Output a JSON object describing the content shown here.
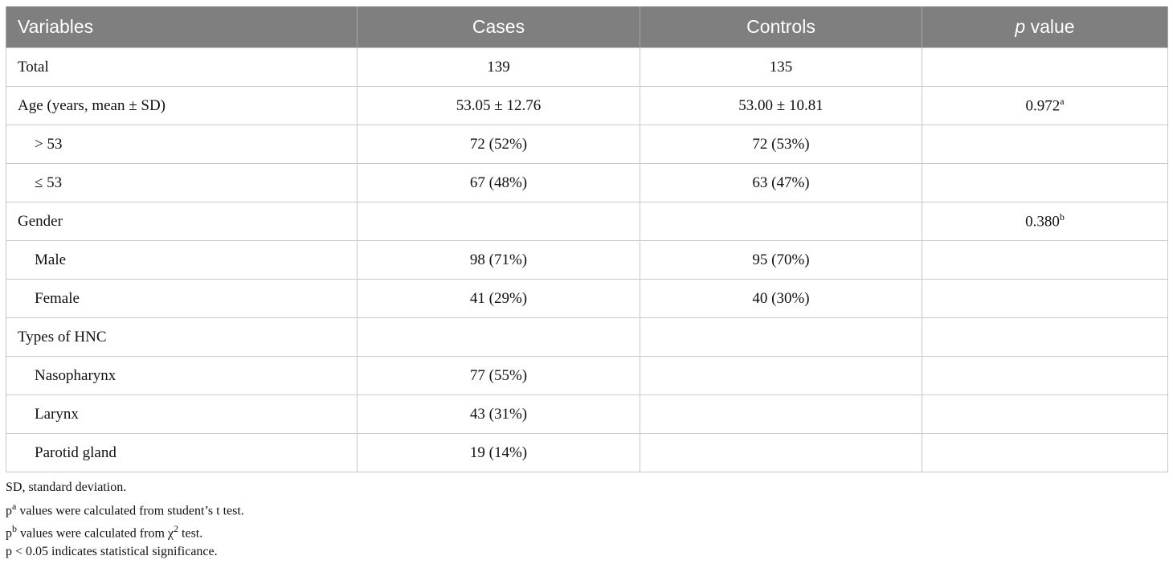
{
  "table": {
    "headers": {
      "variables": "Variables",
      "cases": "Cases",
      "controls": "Controls",
      "p_italic": "p",
      "p_rest": " value"
    },
    "rows": [
      {
        "label": "Total",
        "cases": "139",
        "controls": "135",
        "p": "",
        "p_sup": ""
      },
      {
        "label": "Age (years, mean ± SD)",
        "cases": "53.05 ± 12.76",
        "controls": "53.00 ± 10.81",
        "p": "0.972",
        "p_sup": "a"
      },
      {
        "label": "> 53",
        "cases": "72 (52%)",
        "controls": "72 (53%)",
        "p": "",
        "p_sup": ""
      },
      {
        "label": "≤ 53",
        "cases": "67 (48%)",
        "controls": "63 (47%)",
        "p": "",
        "p_sup": ""
      },
      {
        "label": "Gender",
        "cases": "",
        "controls": "",
        "p": "0.380",
        "p_sup": "b"
      },
      {
        "label": "Male",
        "cases": "98 (71%)",
        "controls": "95 (70%)",
        "p": "",
        "p_sup": ""
      },
      {
        "label": "Female",
        "cases": "41 (29%)",
        "controls": "40 (30%)",
        "p": "",
        "p_sup": ""
      },
      {
        "label": "Types of HNC",
        "cases": "",
        "controls": "",
        "p": "",
        "p_sup": ""
      },
      {
        "label": "Nasopharynx",
        "cases": "77 (55%)",
        "controls": "",
        "p": "",
        "p_sup": ""
      },
      {
        "label": "Larynx",
        "cases": "43 (31%)",
        "controls": "",
        "p": "",
        "p_sup": ""
      },
      {
        "label": "Parotid gland",
        "cases": "19 (14%)",
        "controls": "",
        "p": "",
        "p_sup": ""
      }
    ]
  },
  "footnotes": {
    "sd": "SD, standard deviation.",
    "a_pre": "p",
    "a_sup": "a",
    "a_text": " values were calculated from student’s t test.",
    "b_pre": "p",
    "b_sup": "b",
    "b_text_1": " values were calculated from χ",
    "b_sup2": "2",
    "b_text_2": " test.",
    "sig": "p < 0.05 indicates statistical significance."
  }
}
